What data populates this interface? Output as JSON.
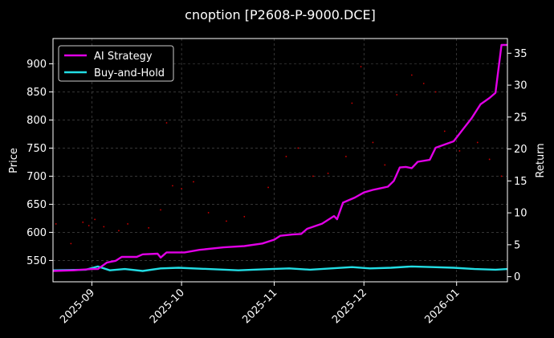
{
  "chart_data": {
    "type": "line",
    "title": "cnoption [P2608-P-9000.DCE]",
    "ylabel_left": "Price",
    "ylabel_right": "Return",
    "x_axis": {
      "range": [
        "2025-08-19",
        "2026-01-18"
      ],
      "ticks": [
        {
          "date": "2025-09-01",
          "label": "2025-09"
        },
        {
          "date": "2025-10-01",
          "label": "2025-10"
        },
        {
          "date": "2025-11-01",
          "label": "2025-11"
        },
        {
          "date": "2025-12-01",
          "label": "2025-12"
        },
        {
          "date": "2026-01-01",
          "label": "2026-01"
        }
      ]
    },
    "y_left": {
      "range": [
        512,
        945
      ],
      "ticks": [
        550,
        600,
        650,
        700,
        750,
        800,
        850,
        900
      ]
    },
    "y_right": {
      "range": [
        -0.8,
        37.3
      ],
      "ticks": [
        0,
        5,
        10,
        15,
        20,
        25,
        30,
        35
      ]
    },
    "grid": true,
    "legend_position": "top-left",
    "series": [
      {
        "name": "AI Strategy",
        "color": "#e100e6",
        "axis": "right",
        "points": [
          [
            "2025-08-19",
            0.9
          ],
          [
            "2025-08-26",
            1.0
          ],
          [
            "2025-09-01",
            1.2
          ],
          [
            "2025-09-03",
            1.2
          ],
          [
            "2025-09-06",
            2.2
          ],
          [
            "2025-09-09",
            2.5
          ],
          [
            "2025-09-11",
            3.1
          ],
          [
            "2025-09-16",
            3.1
          ],
          [
            "2025-09-18",
            3.5
          ],
          [
            "2025-09-23",
            3.6
          ],
          [
            "2025-09-24",
            3.0
          ],
          [
            "2025-09-26",
            3.8
          ],
          [
            "2025-10-02",
            3.8
          ],
          [
            "2025-10-07",
            4.2
          ],
          [
            "2025-10-15",
            4.6
          ],
          [
            "2025-10-22",
            4.8
          ],
          [
            "2025-10-28",
            5.2
          ],
          [
            "2025-11-01",
            5.8
          ],
          [
            "2025-11-03",
            6.4
          ],
          [
            "2025-11-07",
            6.6
          ],
          [
            "2025-11-10",
            6.7
          ],
          [
            "2025-11-12",
            7.5
          ],
          [
            "2025-11-17",
            8.3
          ],
          [
            "2025-11-21",
            9.5
          ],
          [
            "2025-11-22",
            9.0
          ],
          [
            "2025-11-24",
            11.6
          ],
          [
            "2025-11-28",
            12.4
          ],
          [
            "2025-12-01",
            13.2
          ],
          [
            "2025-12-04",
            13.6
          ],
          [
            "2025-12-06",
            13.8
          ],
          [
            "2025-12-09",
            14.1
          ],
          [
            "2025-12-11",
            15.0
          ],
          [
            "2025-12-13",
            17.1
          ],
          [
            "2025-12-15",
            17.2
          ],
          [
            "2025-12-17",
            17.0
          ],
          [
            "2025-12-19",
            18.0
          ],
          [
            "2025-12-23",
            18.3
          ],
          [
            "2025-12-25",
            20.2
          ],
          [
            "2025-12-28",
            20.7
          ],
          [
            "2025-12-31",
            21.2
          ],
          [
            "2026-01-03",
            23.0
          ],
          [
            "2026-01-06",
            24.8
          ],
          [
            "2026-01-09",
            27.0
          ],
          [
            "2026-01-12",
            28.0
          ],
          [
            "2026-01-14",
            28.8
          ],
          [
            "2026-01-16",
            36.3
          ],
          [
            "2026-01-18",
            36.3
          ]
        ]
      },
      {
        "name": "Buy-and-Hold",
        "color": "#22dde4",
        "axis": "right",
        "points": [
          [
            "2025-08-19",
            1.0
          ],
          [
            "2025-08-30",
            1.1
          ],
          [
            "2025-09-03",
            1.6
          ],
          [
            "2025-09-07",
            1.0
          ],
          [
            "2025-09-12",
            1.2
          ],
          [
            "2025-09-18",
            0.9
          ],
          [
            "2025-09-24",
            1.3
          ],
          [
            "2025-09-30",
            1.4
          ],
          [
            "2025-10-10",
            1.2
          ],
          [
            "2025-10-20",
            1.0
          ],
          [
            "2025-10-31",
            1.2
          ],
          [
            "2025-11-06",
            1.3
          ],
          [
            "2025-11-13",
            1.1
          ],
          [
            "2025-11-20",
            1.3
          ],
          [
            "2025-11-27",
            1.5
          ],
          [
            "2025-12-03",
            1.3
          ],
          [
            "2025-12-10",
            1.4
          ],
          [
            "2025-12-17",
            1.6
          ],
          [
            "2025-12-24",
            1.5
          ],
          [
            "2025-12-31",
            1.4
          ],
          [
            "2026-01-07",
            1.2
          ],
          [
            "2026-01-14",
            1.1
          ],
          [
            "2026-01-18",
            1.2
          ]
        ]
      }
    ],
    "scatter_markers": {
      "color": "#cc0000",
      "axis": "left",
      "points": [
        [
          "2025-08-20",
          615
        ],
        [
          "2025-08-25",
          580
        ],
        [
          "2025-08-29",
          618
        ],
        [
          "2025-08-31",
          612
        ],
        [
          "2025-09-02",
          623
        ],
        [
          "2025-09-05",
          610
        ],
        [
          "2025-09-10",
          603
        ],
        [
          "2025-09-13",
          615
        ],
        [
          "2025-09-20",
          608
        ],
        [
          "2025-09-24",
          640
        ],
        [
          "2025-09-26",
          795
        ],
        [
          "2025-09-28",
          683
        ],
        [
          "2025-10-01",
          678
        ],
        [
          "2025-10-05",
          690
        ],
        [
          "2025-10-10",
          635
        ],
        [
          "2025-10-16",
          620
        ],
        [
          "2025-10-22",
          628
        ],
        [
          "2025-10-30",
          680
        ],
        [
          "2025-11-05",
          735
        ],
        [
          "2025-11-09",
          750
        ],
        [
          "2025-11-14",
          700
        ],
        [
          "2025-11-19",
          705
        ],
        [
          "2025-11-25",
          735
        ],
        [
          "2025-11-27",
          830
        ],
        [
          "2025-11-30",
          895
        ],
        [
          "2025-12-04",
          760
        ],
        [
          "2025-12-08",
          720
        ],
        [
          "2025-12-12",
          845
        ],
        [
          "2025-12-17",
          880
        ],
        [
          "2025-12-21",
          865
        ],
        [
          "2025-12-25",
          850
        ],
        [
          "2025-12-28",
          780
        ],
        [
          "2026-01-02",
          745
        ],
        [
          "2026-01-08",
          760
        ],
        [
          "2026-01-12",
          730
        ],
        [
          "2026-01-16",
          700
        ]
      ]
    }
  }
}
